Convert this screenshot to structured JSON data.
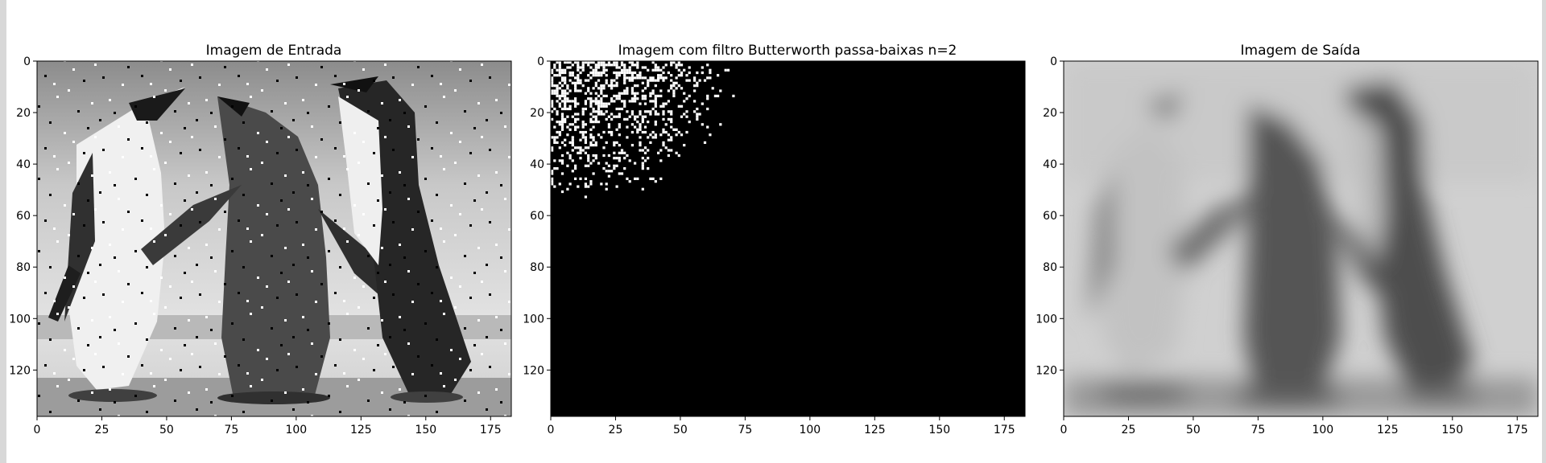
{
  "chart_data": [
    {
      "type": "image",
      "title": "Imagem de Entrada",
      "content": "grayscale photo of three penguins with salt-and-pepper noise",
      "xlim": [
        0,
        183
      ],
      "ylim": [
        138,
        0
      ],
      "xticks": [
        0,
        25,
        50,
        75,
        100,
        125,
        150,
        175
      ],
      "yticks": [
        0,
        20,
        40,
        60,
        80,
        100,
        120
      ]
    },
    {
      "type": "image",
      "title": "Imagem com filtro Butterworth passa-baixas n=2",
      "content": "binary frequency-domain mask: white specks concentrated in top-left corner, black elsewhere",
      "xlim": [
        0,
        183
      ],
      "ylim": [
        138,
        0
      ],
      "xticks": [
        0,
        25,
        50,
        75,
        100,
        125,
        150,
        175
      ],
      "yticks": [
        0,
        20,
        40,
        60,
        80,
        100,
        120
      ]
    },
    {
      "type": "image",
      "title": "Imagem de Saída",
      "content": "blurred grayscale reconstruction of the penguin image",
      "xlim": [
        0,
        183
      ],
      "ylim": [
        138,
        0
      ],
      "xticks": [
        0,
        25,
        50,
        75,
        100,
        125,
        150,
        175
      ],
      "yticks": [
        0,
        20,
        40,
        60,
        80,
        100,
        120
      ]
    }
  ]
}
